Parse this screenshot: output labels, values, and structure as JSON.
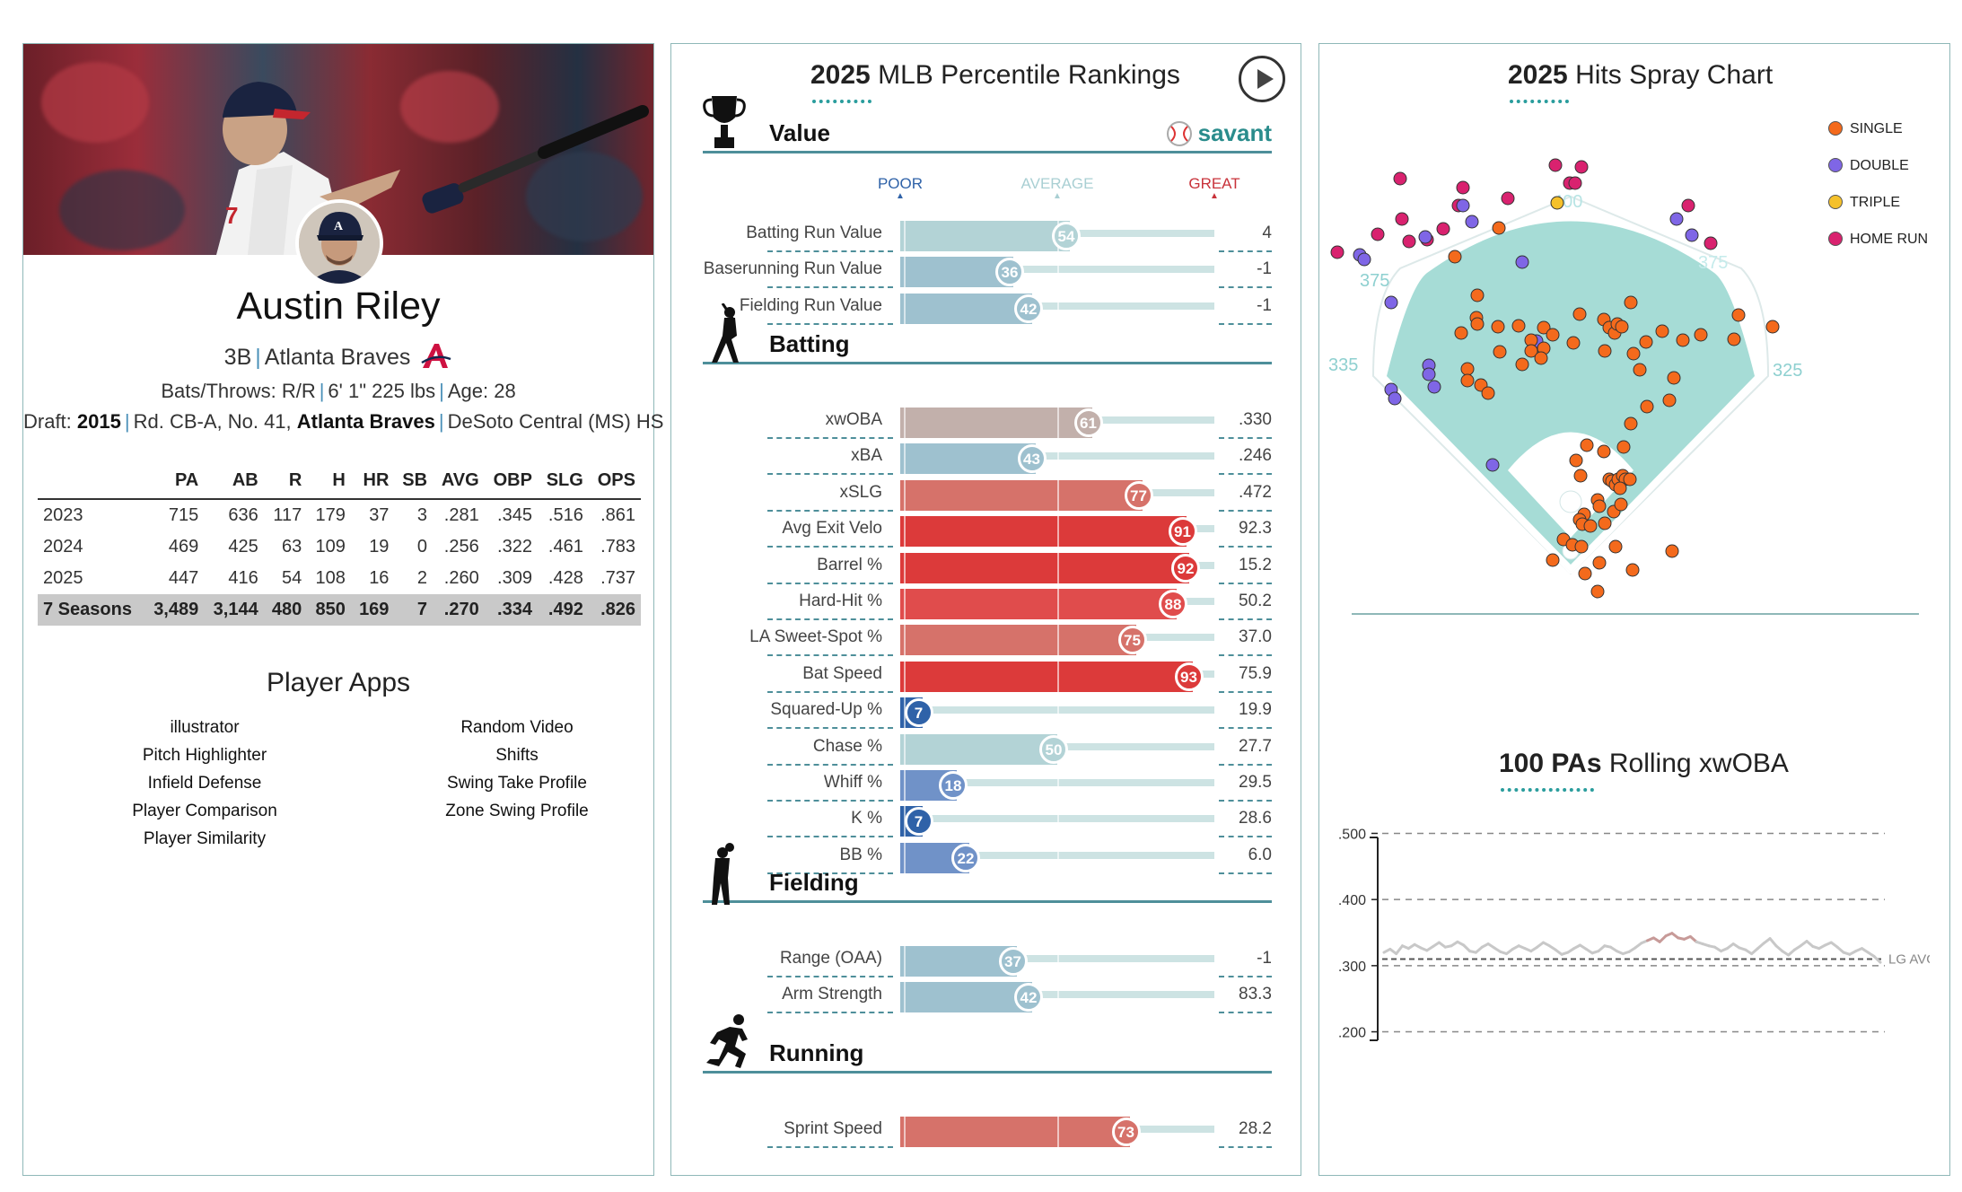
{
  "player": {
    "name": "Austin Riley",
    "position": "3B",
    "team": "Atlanta Braves",
    "bats_throws_label": "Bats/Throws:",
    "bats_throws": "R/R",
    "height": "6' 1\"",
    "weight": "225 lbs",
    "age_label": "Age:",
    "age": "28",
    "draft_label": "Draft:",
    "draft_year": "2015",
    "draft_pick": "Rd. CB-A, No. 41,",
    "draft_team": "Atlanta Braves",
    "school": "DeSoto Central (MS) HS"
  },
  "stats": {
    "headers": [
      "",
      "PA",
      "AB",
      "R",
      "H",
      "HR",
      "SB",
      "AVG",
      "OBP",
      "SLG",
      "OPS"
    ],
    "rows": [
      [
        "2023",
        "715",
        "636",
        "117",
        "179",
        "37",
        "3",
        ".281",
        ".345",
        ".516",
        ".861"
      ],
      [
        "2024",
        "469",
        "425",
        "63",
        "109",
        "19",
        "0",
        ".256",
        ".322",
        ".461",
        ".783"
      ],
      [
        "2025",
        "447",
        "416",
        "54",
        "108",
        "16",
        "2",
        ".260",
        ".309",
        ".428",
        ".737"
      ]
    ],
    "total": [
      "7 Seasons",
      "3,489",
      "3,144",
      "480",
      "850",
      "169",
      "7",
      ".270",
      ".334",
      ".492",
      ".826"
    ]
  },
  "apps": {
    "title": "Player Apps",
    "left": [
      "illustrator",
      "Pitch Highlighter",
      "Infield Defense",
      "Player Comparison",
      "Player Similarity"
    ],
    "right": [
      "Random Video",
      "Shifts",
      "Swing Take Profile",
      "Zone Swing Profile"
    ]
  },
  "percentile": {
    "title_year": "2025",
    "title_rest": "MLB Percentile Rankings",
    "legend": {
      "poor": "POOR",
      "average": "AVERAGE",
      "great": "GREAT"
    },
    "savant": "savant",
    "sections": [
      {
        "title": "Value",
        "rows": [
          {
            "label": "Batting Run Value",
            "pct": 54,
            "value": "4"
          },
          {
            "label": "Baserunning Run Value",
            "pct": 36,
            "value": "-1"
          },
          {
            "label": "Fielding Run Value",
            "pct": 42,
            "value": "-1"
          }
        ]
      },
      {
        "title": "Batting",
        "rows": [
          {
            "label": "xwOBA",
            "pct": 61,
            "value": ".330"
          },
          {
            "label": "xBA",
            "pct": 43,
            "value": ".246"
          },
          {
            "label": "xSLG",
            "pct": 77,
            "value": ".472"
          },
          {
            "label": "Avg Exit Velo",
            "pct": 91,
            "value": "92.3"
          },
          {
            "label": "Barrel %",
            "pct": 92,
            "value": "15.2"
          },
          {
            "label": "Hard-Hit %",
            "pct": 88,
            "value": "50.2"
          },
          {
            "label": "LA Sweet-Spot %",
            "pct": 75,
            "value": "37.0"
          },
          {
            "label": "Bat Speed",
            "pct": 93,
            "value": "75.9"
          },
          {
            "label": "Squared-Up %",
            "pct": 7,
            "value": "19.9"
          },
          {
            "label": "Chase %",
            "pct": 50,
            "value": "27.7"
          },
          {
            "label": "Whiff %",
            "pct": 18,
            "value": "29.5"
          },
          {
            "label": "K %",
            "pct": 7,
            "value": "28.6"
          },
          {
            "label": "BB %",
            "pct": 22,
            "value": "6.0"
          }
        ]
      },
      {
        "title": "Fielding",
        "rows": [
          {
            "label": "Range (OAA)",
            "pct": 37,
            "value": "-1"
          },
          {
            "label": "Arm Strength",
            "pct": 42,
            "value": "83.3"
          }
        ]
      },
      {
        "title": "Running",
        "rows": [
          {
            "label": "Sprint Speed",
            "pct": 73,
            "value": "28.2"
          }
        ]
      }
    ]
  },
  "spray": {
    "title_year": "2025",
    "title_rest": "Hits Spray Chart",
    "legend": [
      {
        "label": "SINGLE",
        "color": "#f46a1c"
      },
      {
        "label": "DOUBLE",
        "color": "#7f66e6"
      },
      {
        "label": "TRIPLE",
        "color": "#f5c12b"
      },
      {
        "label": "HOME RUN",
        "color": "#d9226f"
      }
    ],
    "distances": {
      "left": "335",
      "left_center": "375",
      "center": "400",
      "right_center": "375",
      "right": "325"
    }
  },
  "rolling": {
    "title_prefix": "100 PAs",
    "title_rest": "Rolling xwOBA",
    "ticks": [
      ".500",
      ".400",
      ".300",
      ".200"
    ],
    "lg_avg_label": "LG AVG",
    "chart_data": {
      "type": "line",
      "title": "100 PAs Rolling xwOBA",
      "ylim": [
        0.16,
        0.54
      ],
      "reference": {
        "name": "LG AVG",
        "y": 0.31
      },
      "series": [
        {
          "values": [
            0.32,
            0.325,
            0.318,
            0.33,
            0.326,
            0.332,
            0.327,
            0.323,
            0.329,
            0.335,
            0.328,
            0.33,
            0.336,
            0.331,
            0.322,
            0.32,
            0.328,
            0.333,
            0.327,
            0.321,
            0.318,
            0.325,
            0.33,
            0.326,
            0.322,
            0.328,
            0.335,
            0.33,
            0.324,
            0.317,
            0.32,
            0.326,
            0.331,
            0.325,
            0.319,
            0.322,
            0.33,
            0.328,
            0.322,
            0.318,
            0.321,
            0.327,
            0.334,
            0.338,
            0.342,
            0.336,
            0.345,
            0.349,
            0.342,
            0.34,
            0.344,
            0.336,
            0.333,
            0.33,
            0.328,
            0.322,
            0.326,
            0.333,
            0.327,
            0.324,
            0.318,
            0.326,
            0.334,
            0.341,
            0.33,
            0.322,
            0.316,
            0.324,
            0.33,
            0.337,
            0.329,
            0.326,
            0.331,
            0.335,
            0.328,
            0.32,
            0.317,
            0.322,
            0.326,
            0.32,
            0.314,
            0.305
          ]
        }
      ]
    }
  }
}
